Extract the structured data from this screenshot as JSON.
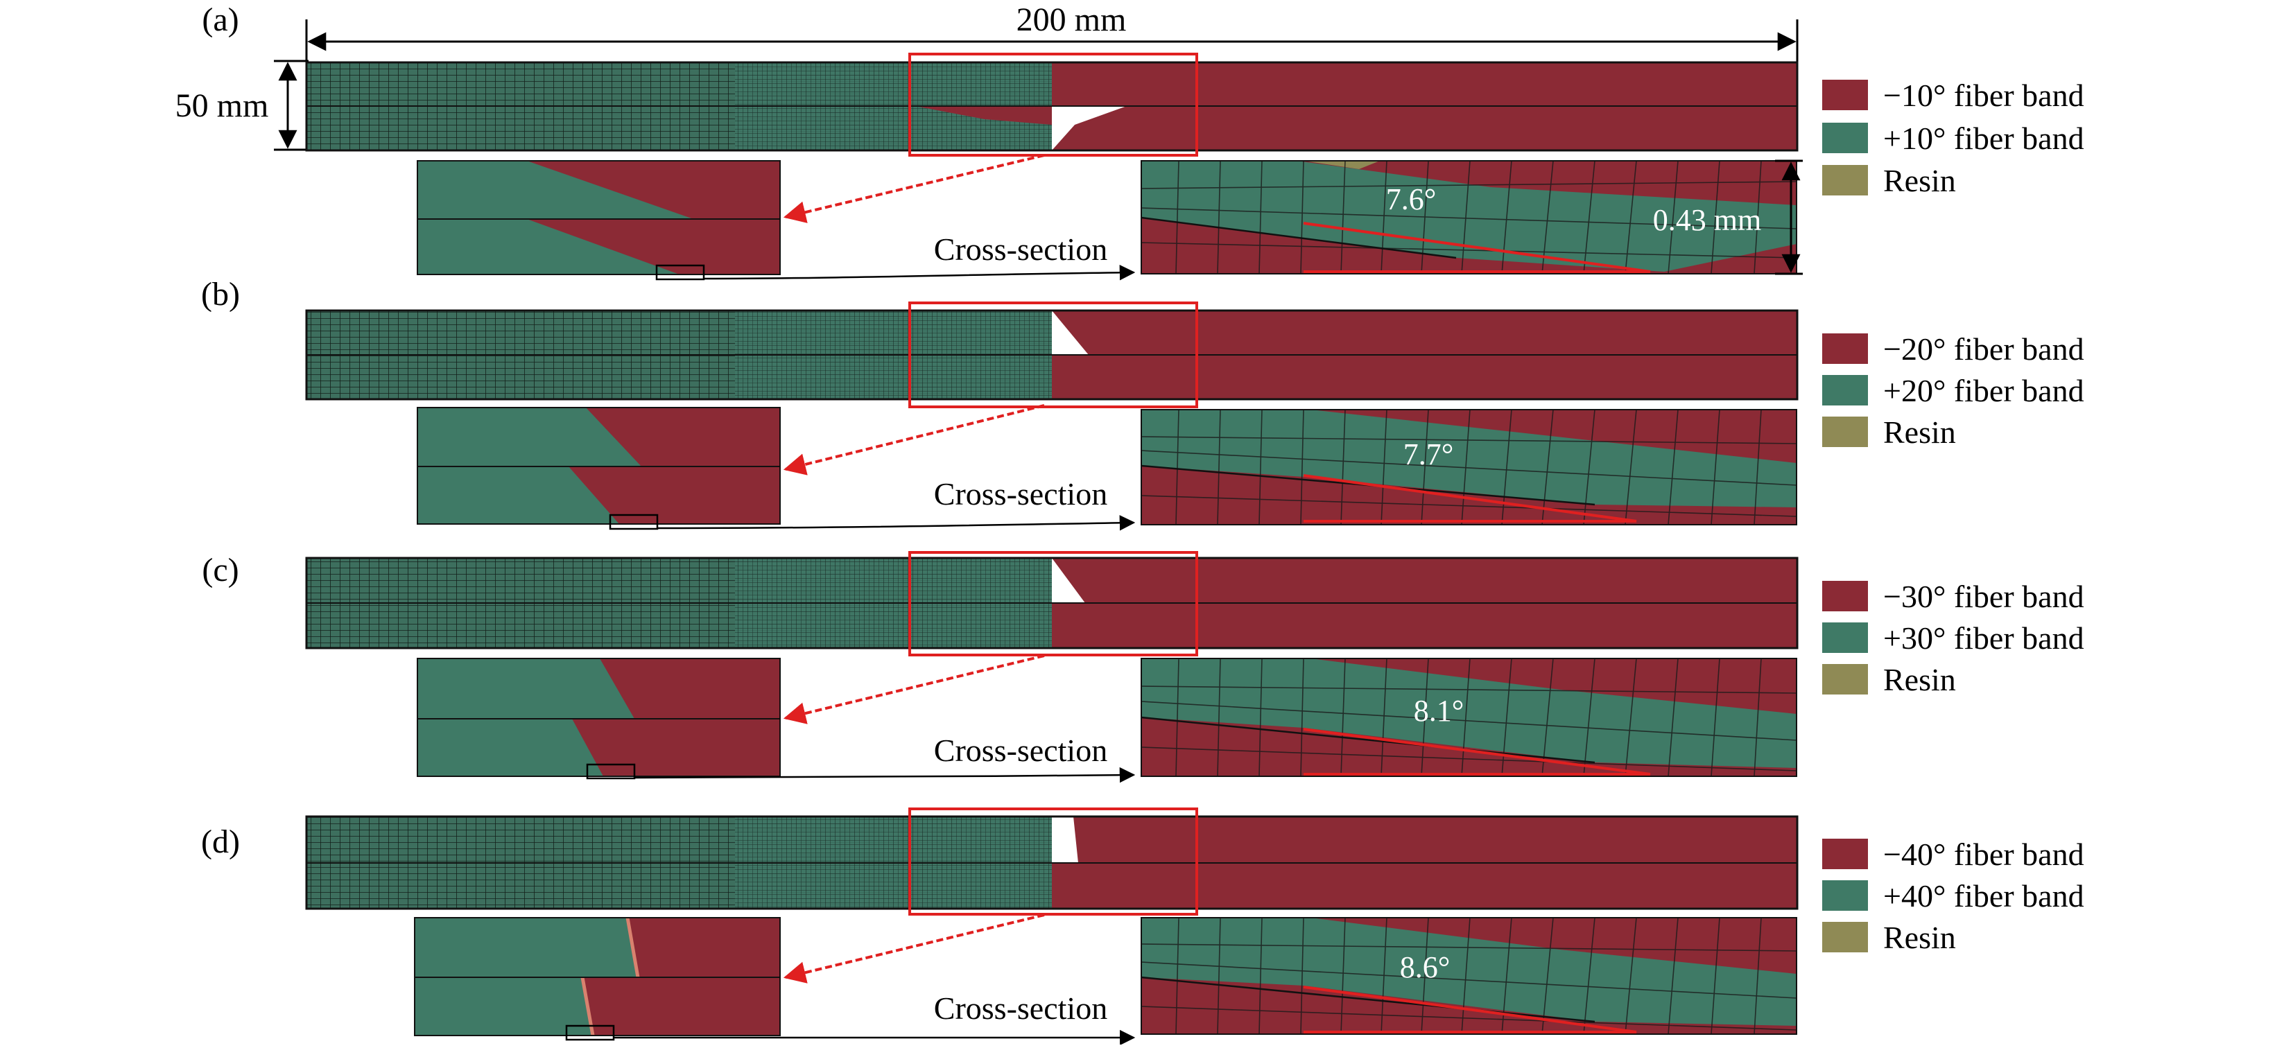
{
  "figure": {
    "dimension_width": "200 mm",
    "dimension_height": "50 mm",
    "panels": [
      {
        "label": "(a)",
        "cross_section_label": "Cross-section",
        "angle_label": "7.6°",
        "thickness_label": "0.43 mm",
        "legend": [
          "−10° fiber band",
          "+10° fiber band",
          "Resin"
        ]
      },
      {
        "label": "(b)",
        "cross_section_label": "Cross-section",
        "angle_label": "7.7°",
        "legend": [
          "−20° fiber band",
          "+20° fiber band",
          "Resin"
        ]
      },
      {
        "label": "(c)",
        "cross_section_label": "Cross-section",
        "angle_label": "8.1°",
        "legend": [
          "−30° fiber band",
          "+30° fiber band",
          "Resin"
        ]
      },
      {
        "label": "(d)",
        "cross_section_label": "Cross-section",
        "angle_label": "8.6°",
        "legend": [
          "−40° fiber band",
          "+40° fiber band",
          "Resin"
        ]
      }
    ]
  },
  "colors": {
    "minus_band": "#8b2a35",
    "plus_band": "#3f7a66",
    "resin": "#8f8a55",
    "highlight": "#e02020",
    "ink": "#000000"
  }
}
